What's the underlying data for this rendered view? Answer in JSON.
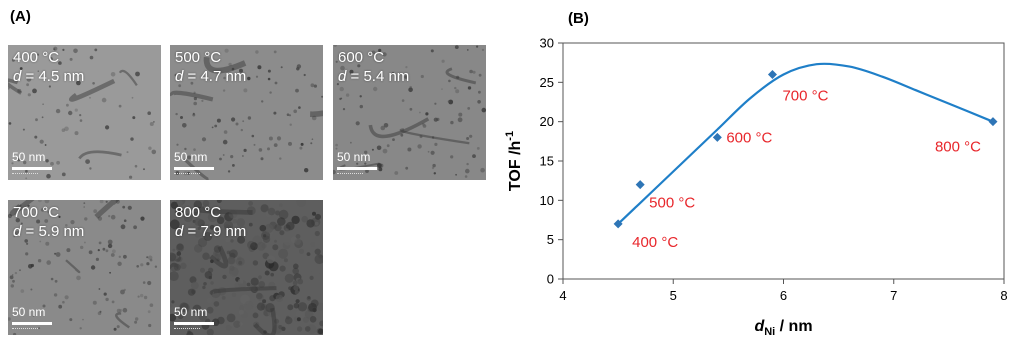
{
  "panel_a": {
    "label": "(A)",
    "images": [
      {
        "temp": "400 °C",
        "d_prefix": "d",
        "d_value": " = 4.5 nm",
        "scale": "50 nm",
        "tone": "#9a9a9a"
      },
      {
        "temp": "500 °C",
        "d_prefix": "d",
        "d_value": " = 4.7 nm",
        "scale": "50 nm",
        "tone": "#8c8c8c"
      },
      {
        "temp": "600 °C",
        "d_prefix": "d",
        "d_value": " = 5.4 nm",
        "scale": "50 nm",
        "tone": "#888888"
      },
      {
        "temp": "700 °C",
        "d_prefix": "d",
        "d_value": " = 5.9 nm",
        "scale": "50 nm",
        "tone": "#8a8a8a"
      },
      {
        "temp": "800 °C",
        "d_prefix": "d",
        "d_value": " = 7.9 nm",
        "scale": "50 nm",
        "tone": "#5e5e5e"
      }
    ]
  },
  "chart_data": {
    "label": "(B)",
    "type": "scatter",
    "xlabel_main": "d",
    "xlabel_sub": "Ni",
    "xlabel_unit": " / nm",
    "ylabel_main": "TOF /h",
    "ylabel_sup": "-1",
    "xlim": [
      4,
      8
    ],
    "ylim": [
      0,
      30
    ],
    "xticks": [
      4,
      5,
      6,
      7,
      8
    ],
    "yticks": [
      0,
      5,
      10,
      15,
      20,
      25,
      30
    ],
    "grid": false,
    "marker_color": "#2e75b6",
    "curve_color": "#1f7fc8",
    "annotation_color": "#e8262b",
    "points": [
      {
        "x": 4.5,
        "y": 7,
        "label": "400 °C"
      },
      {
        "x": 4.7,
        "y": 12,
        "label": "500 °C"
      },
      {
        "x": 5.4,
        "y": 18,
        "label": "600 °C"
      },
      {
        "x": 5.9,
        "y": 26,
        "label": "700 °C"
      },
      {
        "x": 7.9,
        "y": 20,
        "label": "800 °C"
      }
    ],
    "fit_curve": {
      "x": [
        4.5,
        4.8,
        5.1,
        5.4,
        5.7,
        6.0,
        6.3,
        6.6,
        6.9,
        7.2,
        7.5,
        7.9
      ],
      "y": [
        7.0,
        11.0,
        15.0,
        19.0,
        23.0,
        26.0,
        27.3,
        27.0,
        25.7,
        24.0,
        22.3,
        20.0
      ]
    }
  }
}
